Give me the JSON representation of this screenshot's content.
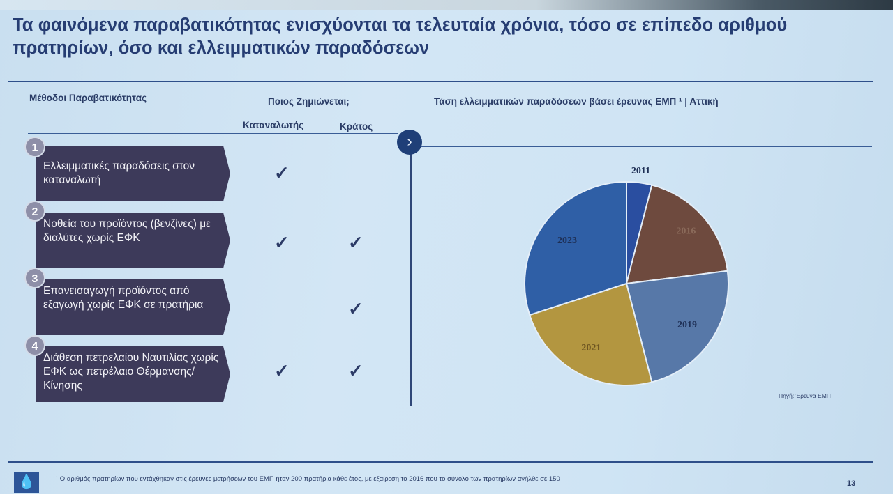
{
  "title": "Τα φαινόμενα παραβατικότητας ενισχύονται τα τελευταία χρόνια, τόσο σε επίπεδο αριθμού πρατηρίων, όσο και ελλειμματικών παραδόσεων",
  "table": {
    "methods_header": "Μέθοδοι Παραβατικότητας",
    "who_header": "Ποιος Ζημιώνεται;",
    "col_consumer": "Καταναλωτής",
    "col_state": "Κράτος",
    "check_symbol": "✓",
    "rows": [
      {
        "num": "1",
        "text": "Ελλειμματικές παραδόσεις στον καταναλωτή",
        "consumer": true,
        "state": false
      },
      {
        "num": "2",
        "text": "Νοθεία του προϊόντος (βενζίνες) με διαλύτες χωρίς ΕΦΚ",
        "consumer": true,
        "state": true
      },
      {
        "num": "3",
        "text": "Επανεισαγωγή προϊόντος από εξαγωγή χωρίς ΕΦΚ σε πρατήρια",
        "consumer": false,
        "state": true
      },
      {
        "num": "4",
        "text": "Διάθεση πετρελαίου Ναυτιλίας χωρίς ΕΦΚ ως πετρέλαιο Θέρμανσης/ Κίνησης",
        "consumer": true,
        "state": true
      }
    ]
  },
  "chevron": "›",
  "chart_data": {
    "type": "pie",
    "title": "Τάση ελλειμματικών παραδόσεων βάσει έρευνας ΕΜΠ ¹ | Αττική",
    "categories": [
      "2011",
      "2016",
      "2019",
      "2021",
      "2023"
    ],
    "values": [
      4,
      19,
      23,
      24,
      30
    ],
    "colors": [
      "#2a4ea0",
      "#6e4a3e",
      "#5778a8",
      "#b39640",
      "#2f5fa6"
    ]
  },
  "source": "Πηγή: Έρευνα ΕΜΠ",
  "footnote": "¹ Ο αριθμός πρατηρίων που εντάχθηκαν στις έρευνες μετρήσεων του ΕΜΠ ήταν 200 πρατήρια κάθε έτος, με εξαίρεση το 2016 που το σύνολο των πρατηρίων ανήλθε σε 150",
  "page_number": "13",
  "logo_icon": "drop-icon"
}
